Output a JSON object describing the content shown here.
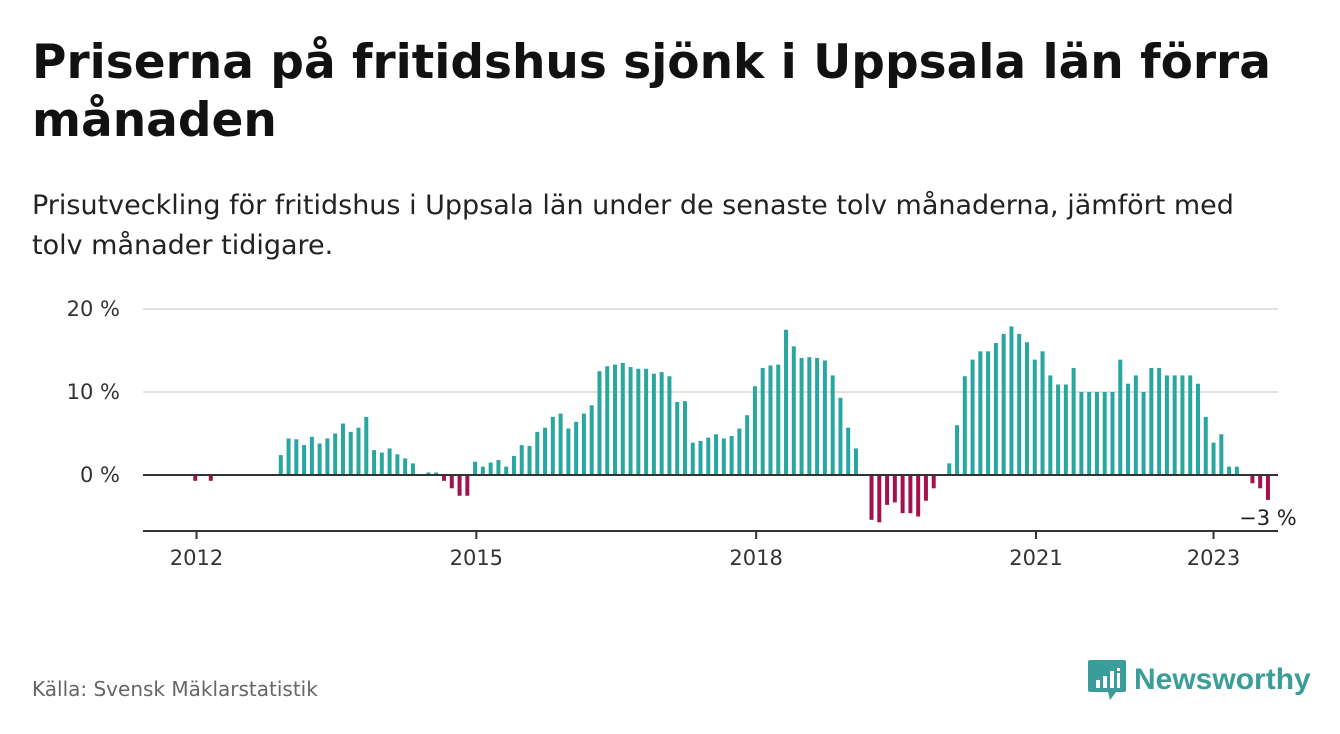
{
  "title": "Priserna på fritidshus sjönk i Uppsala län förra månaden",
  "subtitle": "Prisutveckling för fritidshus i Uppsala län under de senaste tolv månaderna, jämfört med tolv månader tidigare.",
  "source": "Källa: Svensk Mäklarstatistik",
  "brand": {
    "name": "Newsworthy",
    "icon": "newsworthy-chart-logo-icon",
    "color": "#3a9d99"
  },
  "chart_data": {
    "type": "bar",
    "colors": {
      "positive": "#2aa6a1",
      "negative": "#a3114e",
      "grid": "#d9d9d9",
      "zero_line": "#333333"
    },
    "x_start": "2012-01",
    "x_end": "2023-03",
    "x_ticks": [
      "2012",
      "2015",
      "2018",
      "2021",
      "2023"
    ],
    "y_ticks": [
      "0 %",
      "10 %",
      "20 %"
    ],
    "y_tick_values": [
      0,
      10,
      20
    ],
    "ylim": [
      -6.5,
      20
    ],
    "grid": true,
    "annotation": {
      "label": "−3 %",
      "target": "last bar"
    },
    "values": [
      null,
      -0.7,
      null,
      -0.7,
      null,
      null,
      null,
      null,
      null,
      null,
      null,
      null,
      2.4,
      4.4,
      4.3,
      3.6,
      4.6,
      3.8,
      4.4,
      5.0,
      6.2,
      5.2,
      5.7,
      7.0,
      3.0,
      2.7,
      3.2,
      2.5,
      2.0,
      1.4,
      null,
      0.3,
      0.3,
      -0.7,
      -1.6,
      -2.5,
      -2.5,
      1.6,
      1.0,
      1.5,
      1.8,
      1.0,
      2.3,
      3.6,
      3.5,
      5.2,
      5.7,
      7.0,
      7.4,
      5.6,
      6.4,
      7.4,
      8.4,
      12.5,
      13.1,
      13.3,
      13.5,
      13.0,
      12.8,
      12.8,
      12.2,
      12.4,
      11.9,
      8.8,
      8.9,
      3.9,
      4.1,
      4.5,
      4.9,
      4.4,
      4.7,
      5.6,
      7.2,
      10.7,
      12.9,
      13.2,
      13.3,
      17.5,
      15.5,
      14.1,
      14.2,
      14.1,
      13.8,
      12.0,
      9.3,
      5.7,
      3.2,
      null,
      -5.4,
      -5.7,
      -3.6,
      -3.3,
      -4.6,
      -4.6,
      -5.0,
      -3.1,
      -1.6,
      null,
      1.4,
      6.0,
      11.9,
      13.9,
      14.9,
      14.9,
      15.9,
      17.0,
      17.9,
      17.0,
      16.0,
      13.9,
      14.9,
      12.0,
      10.9,
      10.9,
      12.9,
      10.0,
      10.0,
      10.0,
      10.0,
      10.0,
      13.9,
      11.0,
      12.0,
      10.0,
      12.9,
      12.9,
      12.0,
      12.0,
      12.0,
      12.0,
      11.0,
      7.0,
      3.9,
      4.9,
      1.0,
      1.0,
      null,
      -1.0,
      -1.6,
      -3.0
    ]
  }
}
